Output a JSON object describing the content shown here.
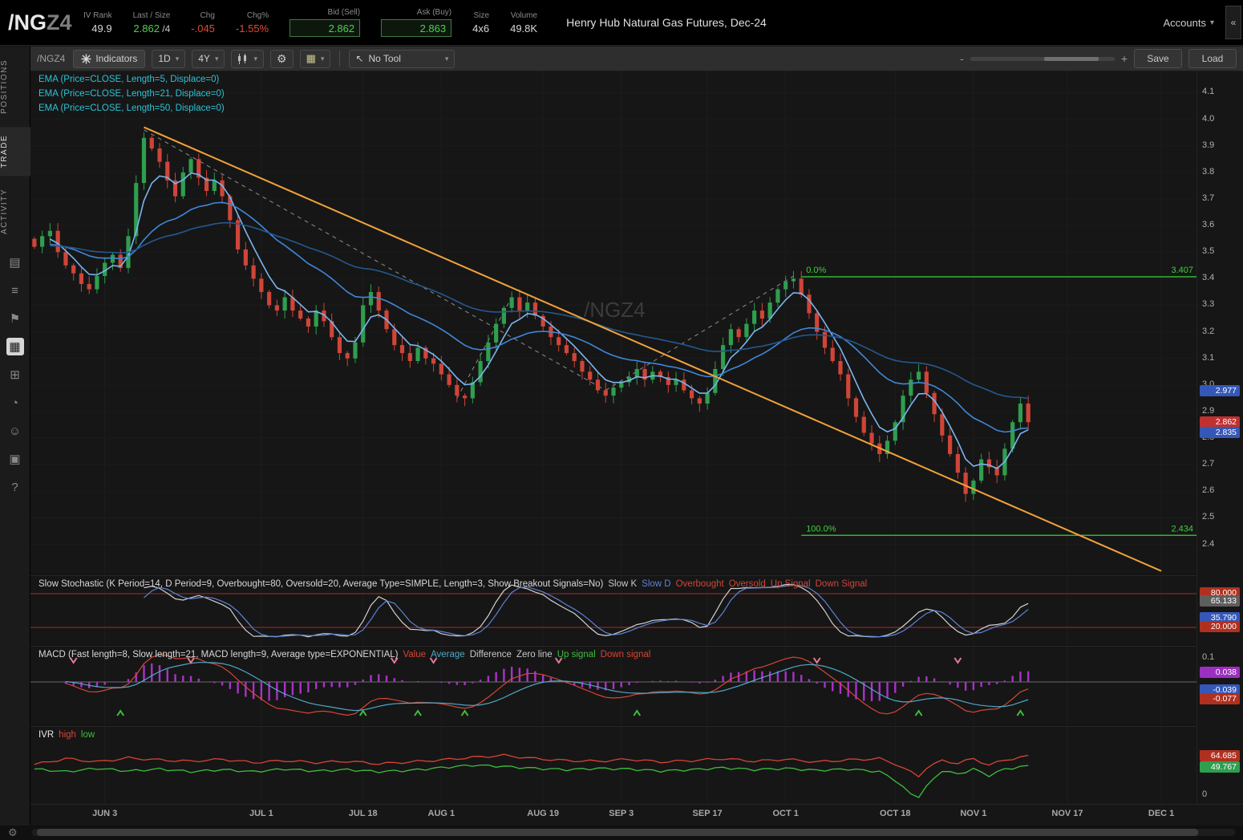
{
  "header": {
    "symbol": "/NG",
    "symbol_suffix": "Z4",
    "fields": [
      {
        "label": "IV Rank",
        "value": "49.9",
        "cls": ""
      },
      {
        "label": "Last / Size",
        "value": "2.862",
        "extra": " /4",
        "cls": "green"
      },
      {
        "label": "Chg",
        "value": "-.045",
        "cls": "red"
      },
      {
        "label": "Chg%",
        "value": "-1.55%",
        "cls": "red"
      },
      {
        "label": "Bid (Sell)",
        "value": "2.862",
        "cls": "boxed"
      },
      {
        "label": "Ask (Buy)",
        "value": "2.863",
        "cls": "boxed"
      },
      {
        "label": "Size",
        "value": "4x6",
        "cls": ""
      },
      {
        "label": "Volume",
        "value": "49.8K",
        "cls": ""
      }
    ],
    "title": "Henry Hub Natural Gas Futures, Dec-24",
    "accounts_label": "Accounts",
    "collapse_glyph": "«"
  },
  "sidebar": {
    "tabs": [
      {
        "label": "POSITIONS",
        "active": false
      },
      {
        "label": "TRADE",
        "active": true
      },
      {
        "label": "ACTIVITY",
        "active": false
      }
    ],
    "icons": [
      {
        "name": "monitor-icon",
        "glyph": "▤",
        "active": false
      },
      {
        "name": "orders-icon",
        "glyph": "≡",
        "active": false
      },
      {
        "name": "alerts-icon",
        "glyph": "⚑",
        "active": false
      },
      {
        "name": "chart-icon",
        "glyph": "▦",
        "active": true
      },
      {
        "name": "grid-icon",
        "glyph": "⊞",
        "active": false
      },
      {
        "name": "history-icon",
        "glyph": "◔",
        "active": false
      },
      {
        "name": "community-icon",
        "glyph": "☺",
        "active": false
      },
      {
        "name": "products-icon",
        "glyph": "▣",
        "active": false
      },
      {
        "name": "help-icon",
        "glyph": "?",
        "active": false
      }
    ]
  },
  "toolbar": {
    "symbol": "/NGZ4",
    "indicators_label": "Indicators",
    "timeframe": "1D",
    "range": "4Y",
    "tool_label": "No Tool",
    "zoom_minus": "-",
    "zoom_plus": "+",
    "save_label": "Save",
    "load_label": "Load"
  },
  "studies": {
    "ema_labels": [
      {
        "text": "EMA (Price=CLOSE, Length=5, Displace=0)",
        "color": "#2cc3d6"
      },
      {
        "text": "EMA (Price=CLOSE, Length=21, Displace=0)",
        "color": "#2cc3d6"
      },
      {
        "text": "EMA (Price=CLOSE, Length=50, Displace=0)",
        "color": "#2cc3d6"
      }
    ],
    "stoch": {
      "title": "Slow Stochastic (K Period=14, D Period=9, Overbought=80, Oversold=20, Average Type=SIMPLE, Length=3, Show Breakout Signals=No)",
      "title_color": "#d8d8d8",
      "legend": [
        {
          "label": "Slow K",
          "color": "#c8c8c8"
        },
        {
          "label": "Slow D",
          "color": "#5b84d6"
        },
        {
          "label": "Overbought",
          "color": "#cf4538"
        },
        {
          "label": "Oversold",
          "color": "#cf4538"
        },
        {
          "label": "Up Signal",
          "color": "#cf4538"
        },
        {
          "label": "Down Signal",
          "color": "#cf4538"
        }
      ],
      "overbought": 80,
      "oversold": 20,
      "badges": [
        {
          "value": "80.000",
          "bg": "#b03020",
          "v": 80
        },
        {
          "value": "65.133",
          "bg": "#5e5e5e",
          "v": 65.133
        },
        {
          "value": "35.790",
          "bg": "#3558b8",
          "v": 35.79
        },
        {
          "value": "20.000",
          "bg": "#b03020",
          "v": 20
        }
      ]
    },
    "macd": {
      "title": "MACD (Fast length=8, Slow length=21, MACD length=9, Average type=EXPONENTIAL)",
      "title_color": "#d8d8d8",
      "legend": [
        {
          "label": "Value",
          "color": "#d64535"
        },
        {
          "label": "Average",
          "color": "#4fa8c8"
        },
        {
          "label": "Difference",
          "color": "#c8c8c8"
        },
        {
          "label": "Zero line",
          "color": "#c8c8c8"
        },
        {
          "label": "Up signal",
          "color": "#3dbd3d"
        },
        {
          "label": "Down signal",
          "color": "#d64535"
        }
      ],
      "axis_tick": "0.1",
      "badges": [
        {
          "value": "0.038",
          "bg": "#9b30c0",
          "v": 0.038
        },
        {
          "value": "-0.039",
          "bg": "#3558b8",
          "v": -0.039
        },
        {
          "value": "-0.077",
          "bg": "#b03020",
          "v": -0.077
        }
      ]
    },
    "ivr": {
      "title": "IVR",
      "title_color": "#e8e8e8",
      "legend": [
        {
          "label": "high",
          "color": "#d64535"
        },
        {
          "label": "low",
          "color": "#3dbd3d"
        }
      ],
      "axis_tick": "0",
      "badges": [
        {
          "value": "64.685",
          "bg": "#b03020",
          "v": 64.685
        },
        {
          "value": "49.767",
          "bg": "#2f9e4f",
          "v": 49.767
        }
      ]
    }
  },
  "chart_data": {
    "type": "candlestick",
    "symbol": "/NGZ4",
    "watermark": "/NGZ4",
    "ylim": [
      2.29,
      4.18
    ],
    "y_tick_min": 2.4,
    "y_tick_max": 4.1,
    "y_tick_step": 0.1,
    "slots": 149,
    "closes": [
      3.52,
      3.56,
      3.58,
      3.5,
      3.45,
      3.42,
      3.38,
      3.36,
      3.41,
      3.46,
      3.49,
      3.44,
      3.56,
      3.76,
      3.93,
      3.89,
      3.84,
      3.77,
      3.71,
      3.8,
      3.85,
      3.78,
      3.73,
      3.77,
      3.71,
      3.62,
      3.51,
      3.45,
      3.4,
      3.35,
      3.3,
      3.28,
      3.33,
      3.28,
      3.25,
      3.22,
      3.28,
      3.24,
      3.18,
      3.12,
      3.1,
      3.16,
      3.3,
      3.35,
      3.28,
      3.21,
      3.15,
      3.12,
      3.09,
      3.14,
      3.1,
      3.08,
      3.04,
      3.0,
      2.96,
      2.95,
      3.01,
      3.09,
      3.16,
      3.23,
      3.29,
      3.33,
      3.28,
      3.31,
      3.26,
      3.22,
      3.18,
      3.15,
      3.12,
      3.09,
      3.05,
      3.02,
      2.98,
      2.96,
      2.99,
      3.01,
      3.03,
      3.06,
      3.02,
      3.05,
      3.03,
      3.0,
      3.02,
      2.98,
      2.95,
      2.93,
      2.97,
      3.06,
      3.15,
      3.21,
      3.18,
      3.23,
      3.28,
      3.25,
      3.31,
      3.36,
      3.39,
      3.4,
      3.34,
      3.27,
      3.2,
      3.14,
      3.09,
      3.04,
      2.95,
      2.88,
      2.82,
      2.78,
      2.74,
      2.79,
      2.86,
      2.96,
      3.02,
      3.05,
      2.97,
      2.89,
      2.81,
      2.74,
      2.67,
      2.59,
      2.64,
      2.72,
      2.69,
      2.66,
      2.76,
      2.86,
      2.93,
      2.86
    ],
    "candle_colors": {
      "up": "#2f9e4f",
      "down": "#cf4538"
    },
    "ema_series": [
      {
        "length": 5,
        "color": "#79b6f2"
      },
      {
        "length": 21,
        "color": "#3f87d9"
      },
      {
        "length": 50,
        "color": "#24588f"
      }
    ],
    "trendline": {
      "from": [
        14,
        3.97
      ],
      "to": [
        144,
        2.3
      ],
      "color": "#f2a23a"
    },
    "dashed_lines": [
      {
        "from": [
          14,
          3.96
        ],
        "to": [
          73,
          2.98
        ]
      },
      {
        "from": [
          73,
          2.98
        ],
        "to": [
          97,
          3.41
        ]
      },
      {
        "from": [
          54,
          2.95
        ],
        "to": [
          61,
          3.33
        ]
      }
    ],
    "fib": {
      "start_index": 98,
      "color": "#2eb82e",
      "levels": [
        {
          "pct": "0.0%",
          "value": "3.407",
          "price": 3.407
        },
        {
          "pct": "100.0%",
          "value": "2.434",
          "price": 2.434
        }
      ]
    },
    "price_badges": [
      {
        "value": "2.977",
        "price": 2.977,
        "bg": "#3558b8"
      },
      {
        "value": "2.862",
        "price": 2.862,
        "bg": "#c03030"
      },
      {
        "value": "2.835",
        "price": 2.82,
        "bg": "#3558b8"
      }
    ],
    "time_ticks": [
      {
        "label": "JUN 3",
        "i": 9
      },
      {
        "label": "JUL 1",
        "i": 29
      },
      {
        "label": "JUL 18",
        "i": 42
      },
      {
        "label": "AUG 1",
        "i": 52
      },
      {
        "label": "AUG 19",
        "i": 65
      },
      {
        "label": "SEP 3",
        "i": 75
      },
      {
        "label": "SEP 17",
        "i": 86
      },
      {
        "label": "OCT 1",
        "i": 96
      },
      {
        "label": "OCT 18",
        "i": 110
      },
      {
        "label": "NOV 1",
        "i": 120
      },
      {
        "label": "NOV 17",
        "i": 132
      },
      {
        "label": "DEC 1",
        "i": 144
      }
    ],
    "macd_signals": {
      "up": [
        11,
        42,
        49,
        55,
        77,
        113,
        126
      ],
      "down": [
        5,
        20,
        46,
        51,
        67,
        100,
        118
      ],
      "up_color": "#3dbd3d",
      "down_color": "#e87a9a"
    },
    "ivr_series": {
      "high_color": "#d64535",
      "low_color": "#3dbd3d",
      "high": [
        [
          0,
          52
        ],
        [
          4,
          61
        ],
        [
          8,
          56
        ],
        [
          12,
          62
        ],
        [
          16,
          59
        ],
        [
          20,
          57
        ],
        [
          24,
          60
        ],
        [
          28,
          55
        ],
        [
          32,
          58
        ],
        [
          36,
          55
        ],
        [
          40,
          57
        ],
        [
          44,
          53
        ],
        [
          48,
          56
        ],
        [
          52,
          59
        ],
        [
          56,
          63
        ],
        [
          60,
          66
        ],
        [
          64,
          61
        ],
        [
          68,
          58
        ],
        [
          72,
          57
        ],
        [
          76,
          60
        ],
        [
          80,
          56
        ],
        [
          84,
          58
        ],
        [
          88,
          61
        ],
        [
          92,
          57
        ],
        [
          96,
          60
        ],
        [
          100,
          56
        ],
        [
          104,
          59
        ],
        [
          108,
          61
        ],
        [
          110,
          53
        ],
        [
          112,
          40
        ],
        [
          113,
          34
        ],
        [
          114,
          47
        ],
        [
          116,
          58
        ],
        [
          118,
          54
        ],
        [
          120,
          61
        ],
        [
          122,
          51
        ],
        [
          124,
          59
        ],
        [
          127,
          64.7
        ]
      ],
      "low": [
        [
          0,
          45
        ],
        [
          4,
          41
        ],
        [
          8,
          46
        ],
        [
          12,
          42
        ],
        [
          16,
          45
        ],
        [
          20,
          41
        ],
        [
          24,
          44
        ],
        [
          28,
          41
        ],
        [
          32,
          45
        ],
        [
          36,
          42
        ],
        [
          40,
          44
        ],
        [
          44,
          41
        ],
        [
          48,
          43
        ],
        [
          52,
          47
        ],
        [
          56,
          51
        ],
        [
          60,
          49
        ],
        [
          64,
          46
        ],
        [
          68,
          44
        ],
        [
          72,
          46
        ],
        [
          76,
          45
        ],
        [
          80,
          42
        ],
        [
          84,
          44
        ],
        [
          88,
          47
        ],
        [
          92,
          44
        ],
        [
          96,
          46
        ],
        [
          100,
          43
        ],
        [
          104,
          45
        ],
        [
          108,
          41
        ],
        [
          110,
          28
        ],
        [
          112,
          6
        ],
        [
          113,
          3
        ],
        [
          114,
          18
        ],
        [
          116,
          43
        ],
        [
          118,
          37
        ],
        [
          120,
          45
        ],
        [
          122,
          35
        ],
        [
          124,
          45
        ],
        [
          127,
          49.8
        ]
      ]
    }
  }
}
